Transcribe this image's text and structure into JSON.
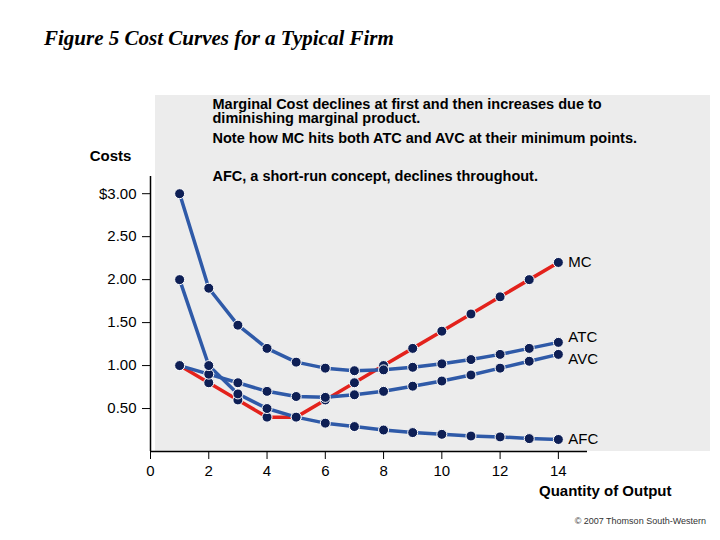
{
  "chart_data": {
    "type": "line",
    "title": "Figure 5 Cost Curves for a Typical Firm",
    "x_label": "Quantity of Output",
    "y_label": "Costs",
    "annotations": [
      "Marginal Cost declines at first and then increases due to diminishing marginal product.",
      "Note how MC hits both ATC and AVC at their minimum points.",
      "AFC, a short-run concept, declines throughout."
    ],
    "source": "© 2007 Thomson South-Western",
    "x": [
      1,
      2,
      3,
      4,
      5,
      6,
      7,
      8,
      9,
      10,
      11,
      12,
      13,
      14
    ],
    "series": [
      {
        "name": "MC",
        "color": "#e3221c",
        "marker": "circle",
        "values": [
          1.0,
          0.8,
          0.6,
          0.4,
          0.4,
          0.6,
          0.8,
          1.0,
          1.2,
          1.4,
          1.6,
          1.8,
          2.0,
          2.2
        ]
      },
      {
        "name": "ATC",
        "color": "#2f5aa8",
        "marker": "circle",
        "values": [
          3.0,
          1.9,
          1.47,
          1.2,
          1.04,
          0.97,
          0.94,
          0.95,
          0.98,
          1.02,
          1.07,
          1.13,
          1.2,
          1.27
        ]
      },
      {
        "name": "AVC",
        "color": "#2f5aa8",
        "marker": "circle",
        "values": [
          1.0,
          0.9,
          0.8,
          0.7,
          0.64,
          0.63,
          0.66,
          0.7,
          0.76,
          0.82,
          0.89,
          0.97,
          1.05,
          1.13
        ]
      },
      {
        "name": "AFC",
        "color": "#2f5aa8",
        "marker": "circle",
        "values": [
          2.0,
          1.0,
          0.67,
          0.5,
          0.4,
          0.33,
          0.29,
          0.25,
          0.22,
          0.2,
          0.18,
          0.17,
          0.15,
          0.14
        ]
      }
    ],
    "xlim": [
      0,
      15
    ],
    "xticks": [
      0,
      2,
      4,
      6,
      8,
      10,
      12,
      14
    ],
    "ylim": [
      0,
      3.2
    ],
    "yticks": [
      {
        "value": 0.5,
        "label": "0.50"
      },
      {
        "value": 1.0,
        "label": "1.00"
      },
      {
        "value": 1.5,
        "label": "1.50"
      },
      {
        "value": 2.0,
        "label": "2.00"
      },
      {
        "value": 2.5,
        "label": "2.50"
      },
      {
        "value": 3.0,
        "label": "$3.00"
      }
    ],
    "grid": false
  }
}
